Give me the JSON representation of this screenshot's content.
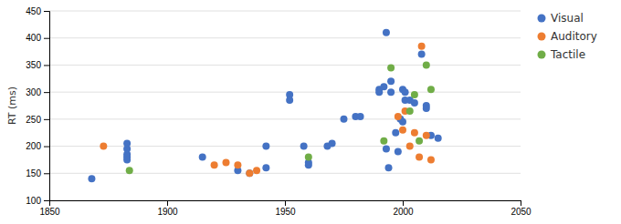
{
  "chart_data": {
    "type": "scatter",
    "y_label": "RT (ms)",
    "series": [
      {
        "name": "Visual",
        "color": "#4472C4",
        "x": [
          1868,
          1883,
          1883,
          1883,
          1883,
          1883,
          1915,
          1930,
          1935,
          1942,
          1942,
          1952,
          1952,
          1958,
          1960,
          1960,
          1968,
          1970,
          1975,
          1980,
          1982,
          1990,
          1990,
          1992,
          1993,
          1993,
          1994,
          1995,
          1995,
          1997,
          1998,
          1999,
          2000,
          2000,
          2001,
          2001,
          2003,
          2005,
          2008,
          2010,
          2010,
          2012,
          2015
        ],
        "values": [
          140,
          185,
          180,
          195,
          205,
          175,
          180,
          155,
          150,
          200,
          160,
          295,
          285,
          200,
          170,
          165,
          200,
          205,
          250,
          255,
          255,
          305,
          300,
          310,
          410,
          195,
          160,
          300,
          320,
          225,
          190,
          250,
          245,
          305,
          300,
          285,
          285,
          280,
          370,
          275,
          270,
          220,
          215
        ]
      },
      {
        "name": "Auditory",
        "color": "#ED7D31",
        "x": [
          1873,
          1920,
          1925,
          1930,
          1935,
          1938,
          1998,
          2000,
          2001,
          2003,
          2005,
          2007,
          2008,
          2010,
          2012
        ],
        "values": [
          200,
          165,
          170,
          165,
          150,
          155,
          255,
          230,
          265,
          200,
          225,
          180,
          385,
          220,
          175
        ]
      },
      {
        "name": "Tactile",
        "color": "#70AD47",
        "x": [
          1884,
          1960,
          1992,
          1995,
          2003,
          2005,
          2007,
          2010,
          2012
        ],
        "values": [
          155,
          180,
          210,
          345,
          265,
          295,
          210,
          350,
          305
        ]
      }
    ],
    "xlim": [
      1850,
      2050
    ],
    "ylim": [
      100,
      450
    ],
    "xticks": [
      1850,
      1900,
      1950,
      2000,
      2050
    ],
    "yticks": [
      100,
      150,
      200,
      250,
      300,
      350,
      400,
      450
    ],
    "grid": true,
    "legend": "right"
  }
}
